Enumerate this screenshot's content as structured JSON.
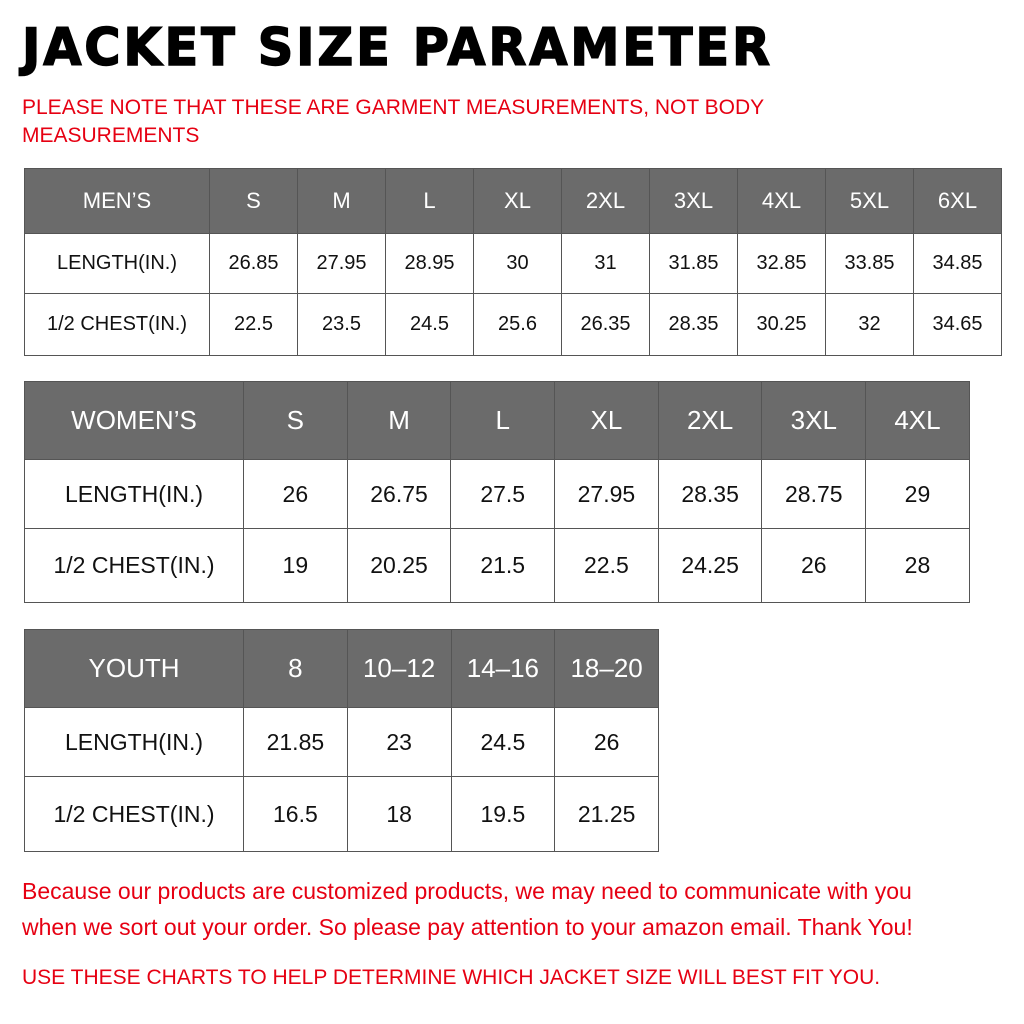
{
  "title": "JACKET SIZE PARAMETER",
  "note": "PLEASE NOTE THAT THESE ARE GARMENT MEASUREMENTS, NOT BODY MEASUREMENTS",
  "men": {
    "header": [
      "MEN’S",
      "S",
      "M",
      "L",
      "XL",
      "2XL",
      "3XL",
      "4XL",
      "5XL",
      "6XL"
    ],
    "rows": [
      [
        "LENGTH(IN.)",
        "26.85",
        "27.95",
        "28.95",
        "30",
        "31",
        "31.85",
        "32.85",
        "33.85",
        "34.85"
      ],
      [
        "1/2 CHEST(IN.)",
        "22.5",
        "23.5",
        "24.5",
        "25.6",
        "26.35",
        "28.35",
        "30.25",
        "32",
        "34.65"
      ]
    ]
  },
  "women": {
    "header": [
      "WOMEN’S",
      "S",
      "M",
      "L",
      "XL",
      "2XL",
      "3XL",
      "4XL"
    ],
    "rows": [
      [
        "LENGTH(IN.)",
        "26",
        "26.75",
        "27.5",
        "27.95",
        "28.35",
        "28.75",
        "29"
      ],
      [
        "1/2 CHEST(IN.)",
        "19",
        "20.25",
        "21.5",
        "22.5",
        "24.25",
        "26",
        "28"
      ]
    ]
  },
  "youth": {
    "header": [
      "YOUTH",
      "8",
      "10–12",
      "14–16",
      "18–20"
    ],
    "rows": [
      [
        "LENGTH(IN.)",
        "21.85",
        "23",
        "24.5",
        "26"
      ],
      [
        "1/2 CHEST(IN.)",
        "16.5",
        "18",
        "19.5",
        "21.25"
      ]
    ]
  },
  "footer": {
    "line1": "Because our products are customized products, we may need to communicate with you",
    "line2": "when we sort out your order. So please pay attention to your amazon email. Thank You!",
    "line3": "USE THESE CHARTS TO HELP DETERMINE WHICH JACKET SIZE WILL BEST FIT YOU."
  },
  "colors": {
    "header_bg": "#6b6b6b",
    "accent_red": "#e60012"
  }
}
